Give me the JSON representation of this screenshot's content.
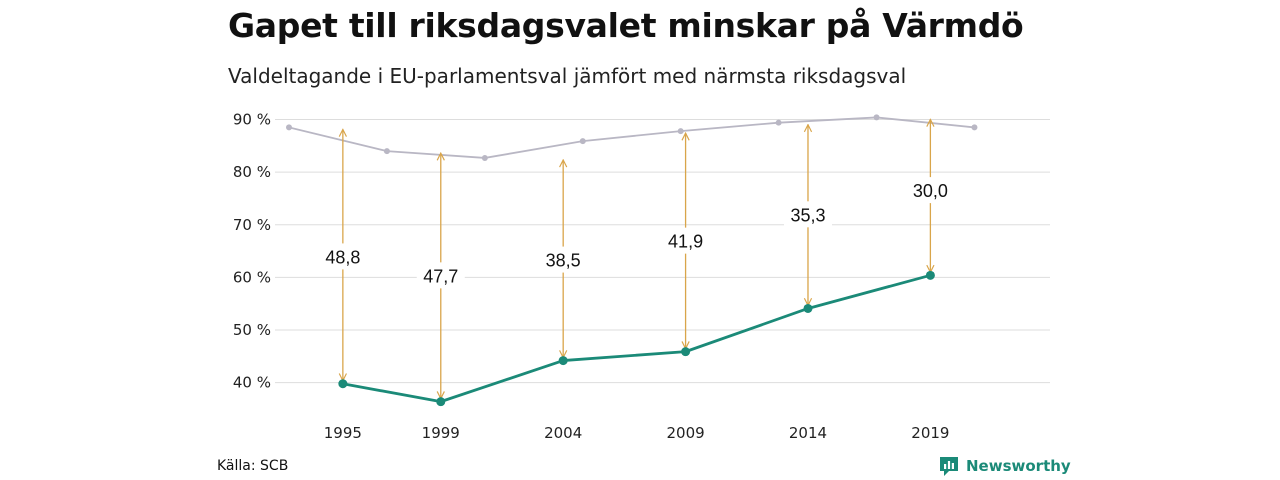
{
  "header": {
    "title": "Gapet till riksdagsvalet minskar på Värmdö",
    "subtitle": "Valdeltagande i EU-parlamentsval jämfört med närmsta riksdagsval"
  },
  "footer": {
    "source": "Källa: SCB",
    "brand": "Newsworthy"
  },
  "colors": {
    "eu": "#1b8a78",
    "riksdag": "#b9b7c4",
    "arrow": "#d9a54a",
    "grid": "#dddddd"
  },
  "chart_data": {
    "type": "line",
    "ylim": [
      35,
      92
    ],
    "xlim": [
      1992.8,
      2023.6
    ],
    "yticks": [
      40,
      50,
      60,
      70,
      80,
      90
    ],
    "ytick_labels": [
      "40 %",
      "50 %",
      "60 %",
      "70 %",
      "80 %",
      "90 %"
    ],
    "xticks": [
      1995,
      1999,
      2004,
      2009,
      2014,
      2019
    ],
    "xtick_labels": [
      "1995",
      "1999",
      "2004",
      "2009",
      "2014",
      "2019"
    ],
    "grid": true,
    "series": [
      {
        "key": "riksdag",
        "x": [
          1992.8,
          1996.8,
          2000.8,
          2004.8,
          2008.8,
          2012.8,
          2016.8,
          2020.8
        ],
        "y": [
          88.5,
          84.0,
          82.7,
          85.9,
          87.8,
          89.4,
          90.4,
          88.5
        ]
      },
      {
        "key": "eu",
        "x": [
          1995,
          1999,
          2004,
          2009,
          2014,
          2019
        ],
        "y": [
          39.8,
          36.4,
          44.2,
          45.9,
          54.1,
          60.4
        ]
      }
    ],
    "gaps": [
      {
        "x": 1995,
        "from": 39.8,
        "to": 88.5,
        "label": "48,8",
        "label_y": 63.8
      },
      {
        "x": 1999,
        "from": 36.4,
        "to": 84.0,
        "label": "47,7",
        "label_y": 60.2
      },
      {
        "x": 2004,
        "from": 44.2,
        "to": 82.7,
        "label": "38,5",
        "label_y": 63.2
      },
      {
        "x": 2009,
        "from": 45.9,
        "to": 87.8,
        "label": "41,9",
        "label_y": 66.8
      },
      {
        "x": 2014,
        "from": 54.1,
        "to": 89.4,
        "label": "35,3",
        "label_y": 71.8
      },
      {
        "x": 2019,
        "from": 60.4,
        "to": 90.4,
        "label": "30,0",
        "label_y": 76.4
      }
    ]
  }
}
